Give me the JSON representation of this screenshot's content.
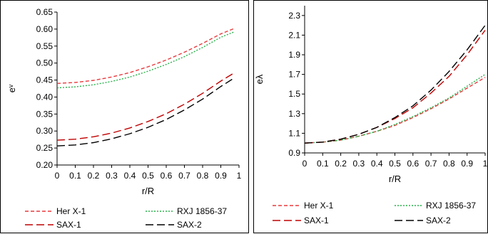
{
  "chart_data": [
    {
      "type": "line",
      "xlabel": "r/R",
      "ylabel": "eᵛ",
      "xlim": [
        0,
        1
      ],
      "ylim": [
        0.2,
        0.65
      ],
      "x_ticks": [
        "0",
        "0.1",
        "0.2",
        "0.3",
        "0.4",
        "0.5",
        "0.6",
        "0.7",
        "0.8",
        "0.9",
        "1"
      ],
      "y_ticks": [
        "0.20",
        "0.25",
        "0.30",
        "0.35",
        "0.40",
        "0.45",
        "0.50",
        "0.55",
        "0.60",
        "0.65"
      ],
      "grid": false,
      "legend_position": "bottom",
      "x": [
        0,
        0.1,
        0.2,
        0.3,
        0.4,
        0.5,
        0.6,
        0.7,
        0.8,
        0.9,
        0.97
      ],
      "series": [
        {
          "name": "Her X-1",
          "color": "#e8383b",
          "dash": "short",
          "values": [
            0.44,
            0.443,
            0.449,
            0.459,
            0.472,
            0.489,
            0.509,
            0.532,
            0.558,
            0.586,
            0.601
          ]
        },
        {
          "name": "RXJ 1856-37",
          "color": "#2ab24b",
          "dash": "dotted",
          "values": [
            0.427,
            0.43,
            0.436,
            0.446,
            0.459,
            0.476,
            0.496,
            0.519,
            0.546,
            0.576,
            0.591
          ]
        },
        {
          "name": "SAX-1",
          "color": "#c00000",
          "dash": "long",
          "values": [
            0.273,
            0.276,
            0.283,
            0.294,
            0.309,
            0.328,
            0.351,
            0.379,
            0.411,
            0.447,
            0.47
          ]
        },
        {
          "name": "SAX-2",
          "color": "#000000",
          "dash": "long",
          "values": [
            0.256,
            0.259,
            0.266,
            0.277,
            0.292,
            0.311,
            0.334,
            0.362,
            0.394,
            0.431,
            0.455
          ]
        }
      ]
    },
    {
      "type": "line",
      "xlabel": "r/R",
      "ylabel": "eλ",
      "xlim": [
        0,
        1
      ],
      "ylim": [
        0.9,
        2.4
      ],
      "x_ticks": [
        "0",
        "0.1",
        "0.2",
        "0.3",
        "0.4",
        "0.5",
        "0.6",
        "0.7",
        "0.8",
        "0.9",
        "1"
      ],
      "y_ticks": [
        "0.9",
        "1.1",
        "1.3",
        "1.5",
        "1.7",
        "1.9",
        "2.1",
        "2.3"
      ],
      "grid": false,
      "legend_position": "bottom",
      "x": [
        0,
        0.1,
        0.2,
        0.3,
        0.4,
        0.5,
        0.6,
        0.7,
        0.8,
        0.9,
        1.0
      ],
      "series": [
        {
          "name": "Her X-1",
          "color": "#e8383b",
          "dash": "short",
          "values": [
            1.0,
            1.01,
            1.03,
            1.07,
            1.12,
            1.18,
            1.26,
            1.35,
            1.45,
            1.56,
            1.67
          ]
        },
        {
          "name": "RXJ 1856-37",
          "color": "#2ab24b",
          "dash": "dotted",
          "values": [
            1.0,
            1.01,
            1.03,
            1.07,
            1.12,
            1.19,
            1.27,
            1.36,
            1.46,
            1.58,
            1.7
          ]
        },
        {
          "name": "SAX-1",
          "color": "#c00000",
          "dash": "long",
          "values": [
            1.0,
            1.01,
            1.04,
            1.09,
            1.16,
            1.25,
            1.36,
            1.51,
            1.68,
            1.9,
            2.15
          ]
        },
        {
          "name": "SAX-2",
          "color": "#000000",
          "dash": "long",
          "values": [
            1.0,
            1.01,
            1.04,
            1.09,
            1.16,
            1.26,
            1.38,
            1.54,
            1.73,
            1.95,
            2.2
          ]
        }
      ]
    }
  ]
}
